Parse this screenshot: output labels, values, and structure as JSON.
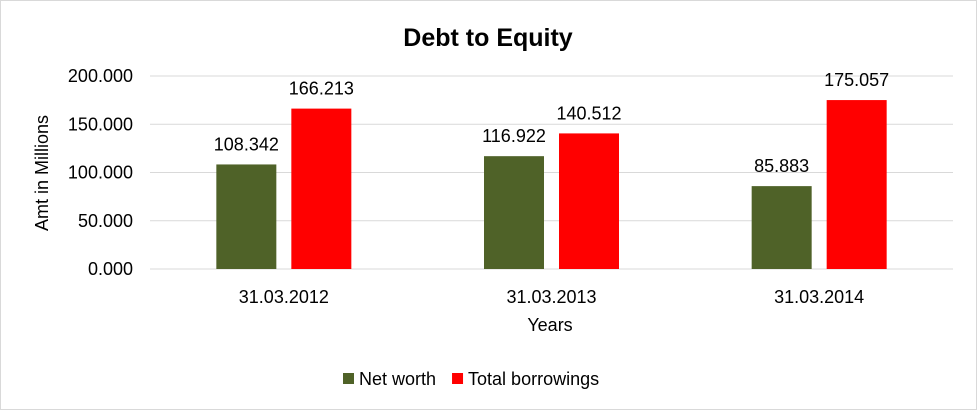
{
  "chart_data": {
    "type": "bar",
    "title": "Debt to Equity",
    "xlabel": "Years",
    "ylabel": "Amt  in Millions",
    "categories": [
      "31.03.2012",
      "31.03.2013",
      "31.03.2014"
    ],
    "series": [
      {
        "name": "Net worth",
        "color": "#4F6228",
        "values": [
          108.342,
          116.922,
          85.883
        ],
        "labels": [
          "108.342",
          "116.922",
          "85.883"
        ]
      },
      {
        "name": "Total borrowings",
        "color": "#FF0000",
        "values": [
          166.213,
          140.512,
          175.057
        ],
        "labels": [
          "166.213",
          "140.512",
          "175.057"
        ]
      }
    ],
    "ylim": [
      0,
      200
    ],
    "yticks": [
      "0.000",
      "50.000",
      "100.000",
      "150.000",
      "200.000"
    ],
    "grid": true,
    "legend_position": "bottom"
  }
}
